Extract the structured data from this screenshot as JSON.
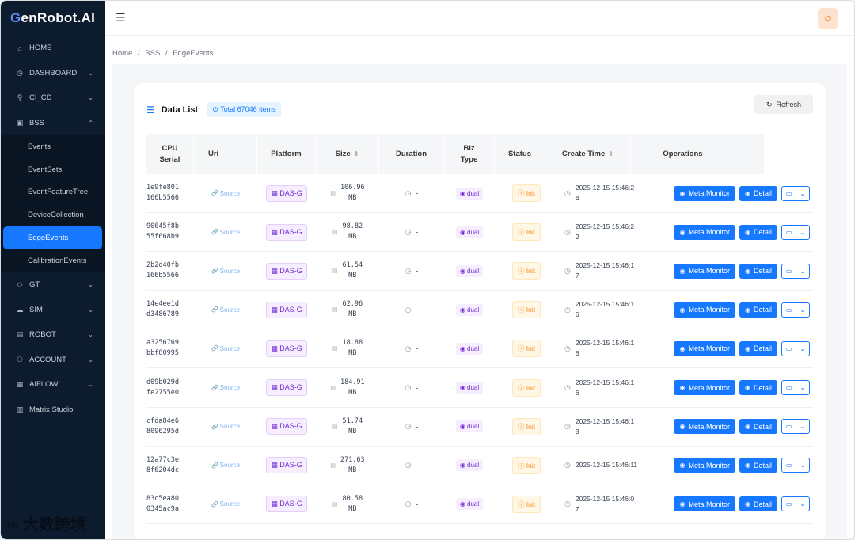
{
  "app": {
    "logo_a": "G",
    "logo_b": "en",
    "logo_c": "Robot",
    "logo_d": ".AI"
  },
  "sidebar": {
    "items": [
      {
        "label": "HOME",
        "icon": "home-icon",
        "glyph": "⌂",
        "chev": ""
      },
      {
        "label": "DASHBOARD",
        "icon": "dashboard-icon",
        "glyph": "◷",
        "chev": "⌄"
      },
      {
        "label": "CI_CD",
        "icon": "rocket-icon",
        "glyph": "⚲",
        "chev": "⌄"
      },
      {
        "label": "BSS",
        "icon": "save-icon",
        "glyph": "▣",
        "chev": "⌃"
      }
    ],
    "sub_items": [
      {
        "label": "Events"
      },
      {
        "label": "EventSets"
      },
      {
        "label": "EventFeatureTree"
      },
      {
        "label": "DeviceCollection"
      },
      {
        "label": "EdgeEvents"
      },
      {
        "label": "CalibrationEvents"
      }
    ],
    "items_after": [
      {
        "label": "GT",
        "icon": "tag-icon",
        "glyph": "◇",
        "chev": "⌄"
      },
      {
        "label": "SIM",
        "icon": "cloud-icon",
        "glyph": "☁",
        "chev": "⌄"
      },
      {
        "label": "ROBOT",
        "icon": "robot-icon",
        "glyph": "▤",
        "chev": "⌄"
      },
      {
        "label": "ACCOUNT",
        "icon": "team-icon",
        "glyph": "⚇",
        "chev": "⌄"
      },
      {
        "label": "AIFLOW",
        "icon": "grid-icon",
        "glyph": "▦",
        "chev": "⌄"
      },
      {
        "label": "Matrix Studio",
        "icon": "chart-icon",
        "glyph": "▥",
        "chev": ""
      }
    ]
  },
  "breadcrumb": {
    "home": "Home",
    "sep": "/",
    "bss": "BSS",
    "current": "EdgeEvents"
  },
  "list": {
    "title": "Data List",
    "total": "Total 67046 items",
    "refresh": "Refresh"
  },
  "columns": {
    "cpu_1": "CPU",
    "cpu_2": "Serial",
    "uri": "Uri",
    "platform": "Platform",
    "size": "Size",
    "duration": "Duration",
    "biz_1": "Biz",
    "biz_2": "Type",
    "status": "Status",
    "create_time": "Create Time",
    "operations": "Operations"
  },
  "rows": [
    {
      "cpu1": "1e9fe801",
      "cpu2": "166b5566",
      "uri": "Source",
      "platform": "DAS-G",
      "size1": "106.96",
      "size2": "MB",
      "duration": "-",
      "biz": "dual",
      "status": "Init",
      "time1": "2025-12-15 15:46:2",
      "time2": "4"
    },
    {
      "cpu1": "90645f8b",
      "cpu2": "55f668b9",
      "uri": "Source",
      "platform": "DAS-G",
      "size1": "98.82",
      "size2": "MB",
      "duration": "-",
      "biz": "dual",
      "status": "Init",
      "time1": "2025-12-15 15:46:2",
      "time2": "2"
    },
    {
      "cpu1": "2b2d40fb",
      "cpu2": "166b5566",
      "uri": "Source",
      "platform": "DAS-G",
      "size1": "61.54",
      "size2": "MB",
      "duration": "-",
      "biz": "dual",
      "status": "Init",
      "time1": "2025-12-15 15:46:1",
      "time2": "7"
    },
    {
      "cpu1": "14e4ee1d",
      "cpu2": "d3486789",
      "uri": "Source",
      "platform": "DAS-G",
      "size1": "62.96",
      "size2": "MB",
      "duration": "-",
      "biz": "dual",
      "status": "Init",
      "time1": "2025-12-15 15:46:1",
      "time2": "6"
    },
    {
      "cpu1": "a3256769",
      "cpu2": "bbf80995",
      "uri": "Source",
      "platform": "DAS-G",
      "size1": "18.88",
      "size2": "MB",
      "duration": "-",
      "biz": "dual",
      "status": "Init",
      "time1": "2025-12-15 15:46:1",
      "time2": "6"
    },
    {
      "cpu1": "d09b029d",
      "cpu2": "fe2755e0",
      "uri": "Source",
      "platform": "DAS-G",
      "size1": "184.91",
      "size2": "MB",
      "duration": "-",
      "biz": "dual",
      "status": "Init",
      "time1": "2025-12-15 15:46:1",
      "time2": "6"
    },
    {
      "cpu1": "cfda84e6",
      "cpu2": "8096295d",
      "uri": "Source",
      "platform": "DAS-G",
      "size1": "51.74",
      "size2": "MB",
      "duration": "-",
      "biz": "dual",
      "status": "Init",
      "time1": "2025-12-15 15:46:1",
      "time2": "3"
    },
    {
      "cpu1": "12a77c3e",
      "cpu2": "8f6204dc",
      "uri": "Source",
      "platform": "DAS-G",
      "size1": "271.63",
      "size2": "MB",
      "duration": "-",
      "biz": "dual",
      "status": "Init",
      "time1": "2025-12-15 15:46:11",
      "time2": ""
    },
    {
      "cpu1": "83c5ea80",
      "cpu2": "0345ac9a",
      "uri": "Source",
      "platform": "DAS-G",
      "size1": "80.58",
      "size2": "MB",
      "duration": "-",
      "biz": "dual",
      "status": "Init",
      "time1": "2025-12-15 15:46:0",
      "time2": "7"
    }
  ],
  "ops": {
    "meta": "Meta Monitor",
    "detail": "Detail"
  },
  "watermark": "大数跨境",
  "colors": {
    "sidebar_bg": "#0d1b2e",
    "primary": "#1677ff",
    "purple_tag": "#722ed1",
    "orange_tag": "#fa8c16"
  }
}
